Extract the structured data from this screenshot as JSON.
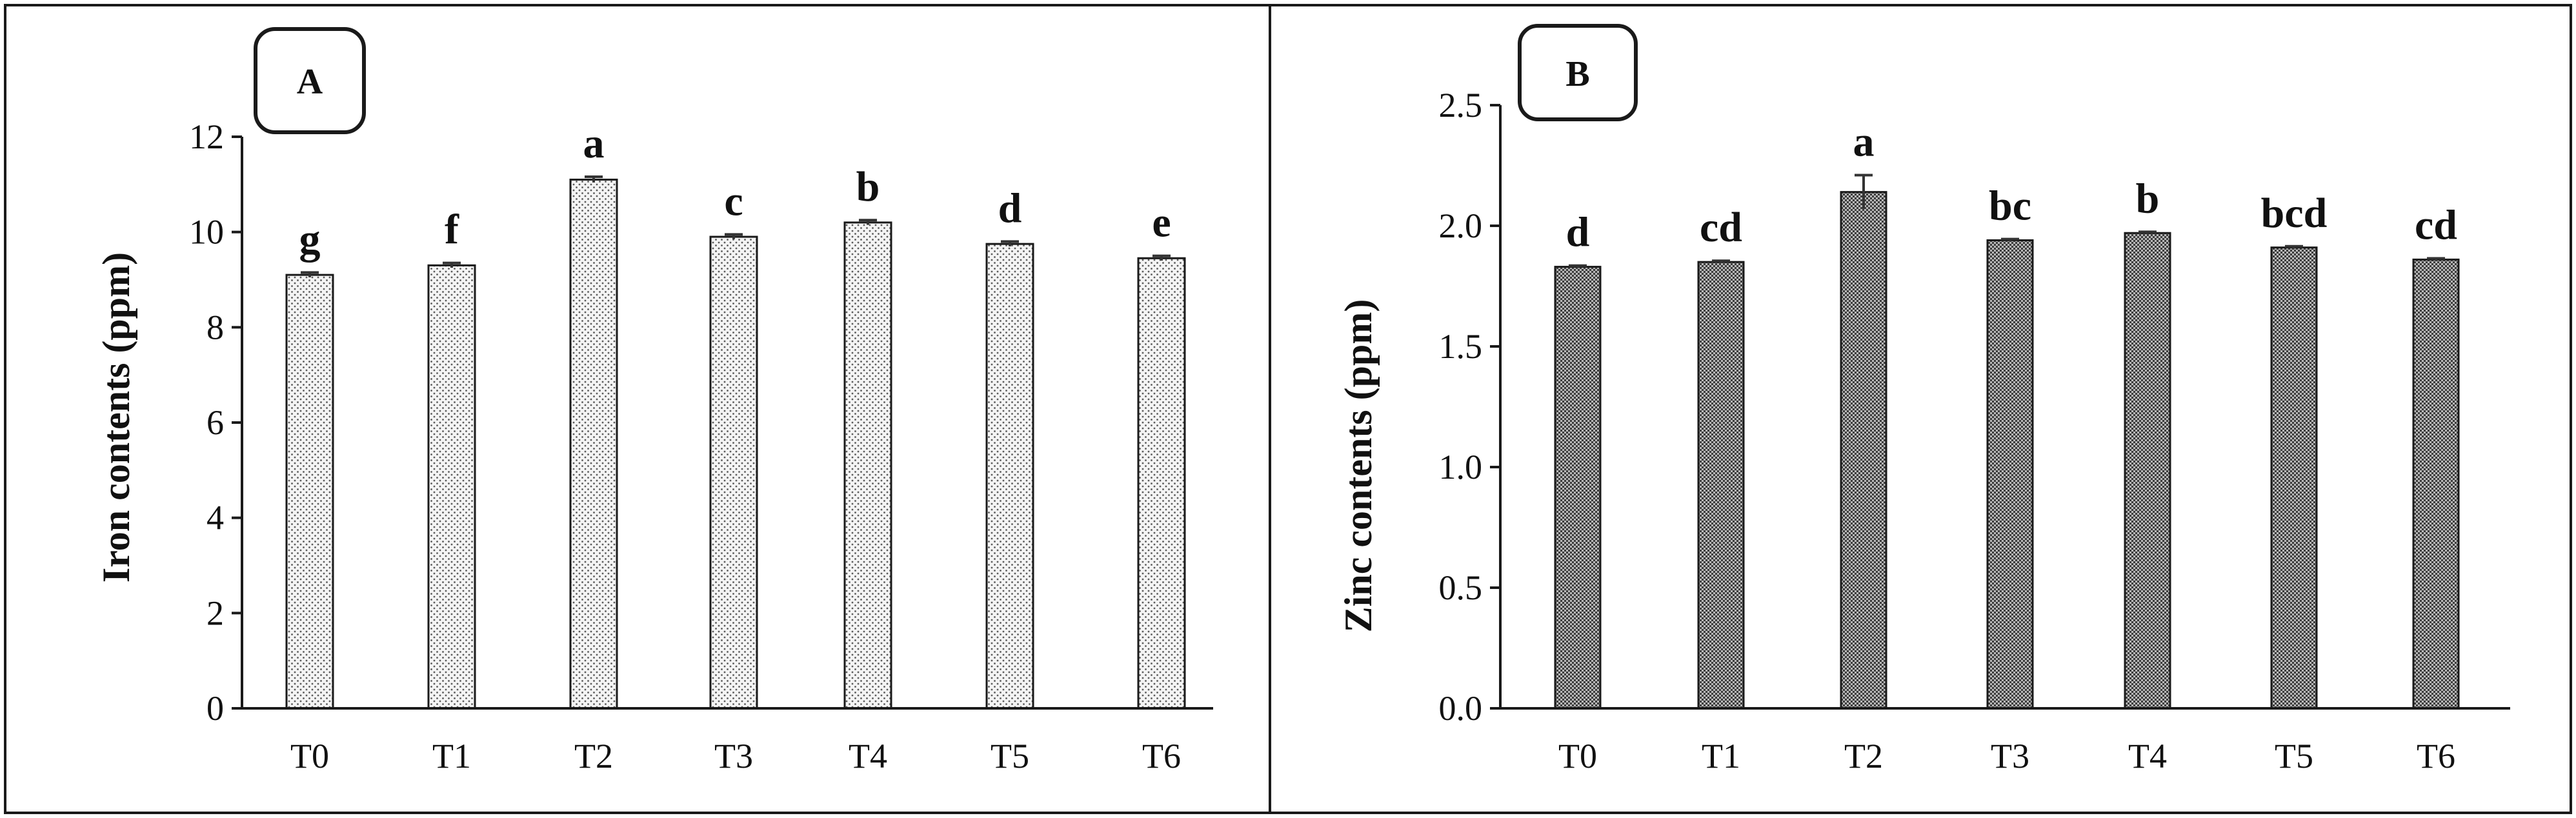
{
  "colors": {
    "axis": "#1a1a1a",
    "bar_stroke": "#1a1a1a",
    "panel_a_dot": "#5a5a5a",
    "panel_a_bg": "#f4f4f4",
    "panel_b_dot": "#3c3c3c",
    "panel_b_bg": "#b8b8b8"
  },
  "chart_data": [
    {
      "type": "bar",
      "panel": "A",
      "title": "",
      "categories": [
        "T0",
        "T1",
        "T2",
        "T3",
        "T4",
        "T5",
        "T6"
      ],
      "values": [
        9.1,
        9.3,
        11.1,
        9.9,
        10.2,
        9.75,
        9.45
      ],
      "errors": [
        0.05,
        0.05,
        0.06,
        0.05,
        0.05,
        0.05,
        0.05
      ],
      "significance": [
        "g",
        "f",
        "a",
        "c",
        "b",
        "d",
        "e"
      ],
      "xlabel": "",
      "ylabel": "Iron contents (ppm)",
      "ylim": [
        0,
        12
      ],
      "yticks": [
        0,
        2,
        4,
        6,
        8,
        10,
        12
      ],
      "ytick_labels": [
        "0",
        "2",
        "4",
        "6",
        "8",
        "10",
        "12"
      ],
      "grid": false,
      "legend": "none"
    },
    {
      "type": "bar",
      "panel": "B",
      "title": "",
      "categories": [
        "T0",
        "T1",
        "T2",
        "T3",
        "T4",
        "T5",
        "T6"
      ],
      "values": [
        1.83,
        1.85,
        2.14,
        1.94,
        1.97,
        1.91,
        1.86
      ],
      "errors": [
        0.005,
        0.005,
        0.07,
        0.005,
        0.005,
        0.005,
        0.005
      ],
      "significance": [
        "d",
        "cd",
        "a",
        "bc",
        "b",
        "bcd",
        "cd"
      ],
      "xlabel": "",
      "ylabel": "Zinc contents (ppm)",
      "ylim": [
        0,
        2.5
      ],
      "yticks": [
        0,
        0.5,
        1.0,
        1.5,
        2.0,
        2.5
      ],
      "ytick_labels": [
        "0.0",
        "0.5",
        "1.0",
        "1.5",
        "2.0",
        "2.5"
      ],
      "grid": false,
      "legend": "none"
    }
  ]
}
